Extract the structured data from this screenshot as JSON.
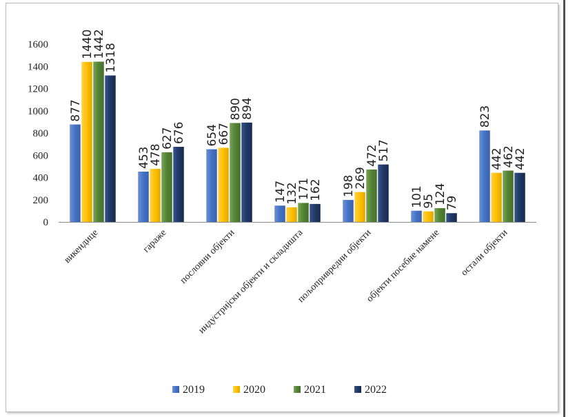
{
  "chart_data": {
    "type": "bar",
    "title": "",
    "xlabel": "",
    "ylabel": "",
    "ylim": [
      0,
      1600
    ],
    "yticks": [
      0,
      200,
      400,
      600,
      800,
      1000,
      1200,
      1400,
      1600
    ],
    "grid": false,
    "legend_position": "bottom",
    "categories": [
      "викендице",
      "гараже",
      "пословни објекти",
      "индустријски објекти и складишта",
      "пољопривредни објекти",
      "објекти посебне намене",
      "остали објекти"
    ],
    "series": [
      {
        "name": "2019",
        "color": "#4472c4",
        "values": [
          877,
          453,
          654,
          147,
          198,
          101,
          823
        ]
      },
      {
        "name": "2020",
        "color": "#ffc000",
        "values": [
          1440,
          478,
          667,
          132,
          269,
          95,
          442
        ]
      },
      {
        "name": "2021",
        "color": "#548235",
        "values": [
          1442,
          627,
          890,
          171,
          472,
          124,
          462
        ]
      },
      {
        "name": "2022",
        "color": "#203864",
        "values": [
          1318,
          676,
          894,
          162,
          517,
          79,
          442
        ]
      }
    ]
  }
}
